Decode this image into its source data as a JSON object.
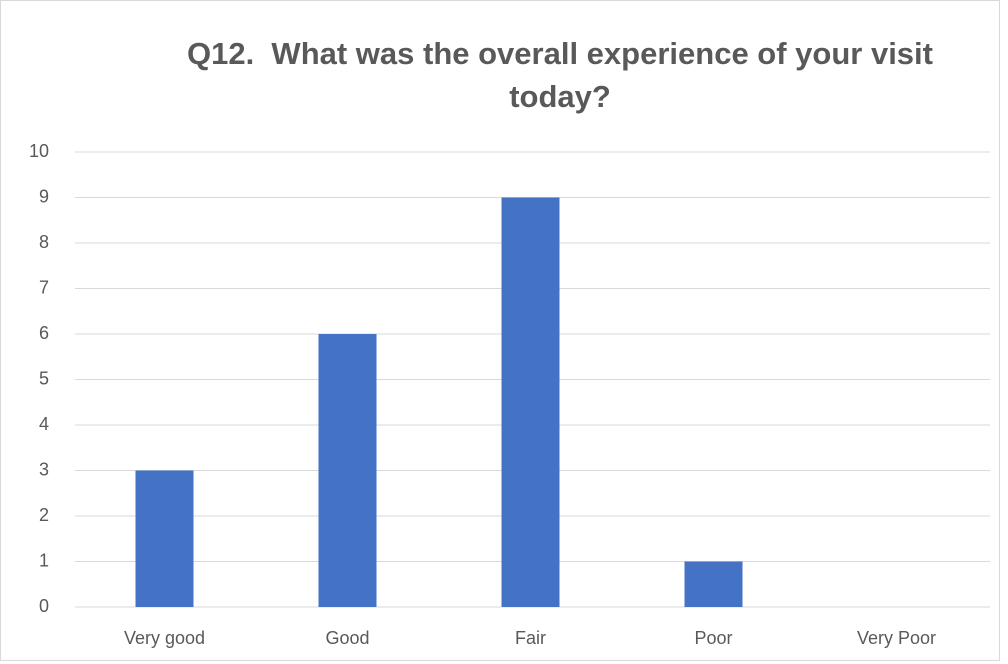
{
  "chart_data": {
    "type": "bar",
    "title": "Q12.  What was the overall experience of your visit today?",
    "categories": [
      "Very good",
      "Good",
      "Fair",
      "Poor",
      "Very Poor"
    ],
    "values": [
      3,
      6,
      9,
      1,
      0
    ],
    "color": "#4472c4",
    "ylim": [
      0,
      10
    ],
    "yticks": [
      0,
      1,
      2,
      3,
      4,
      5,
      6,
      7,
      8,
      9,
      10
    ],
    "grid": true
  }
}
